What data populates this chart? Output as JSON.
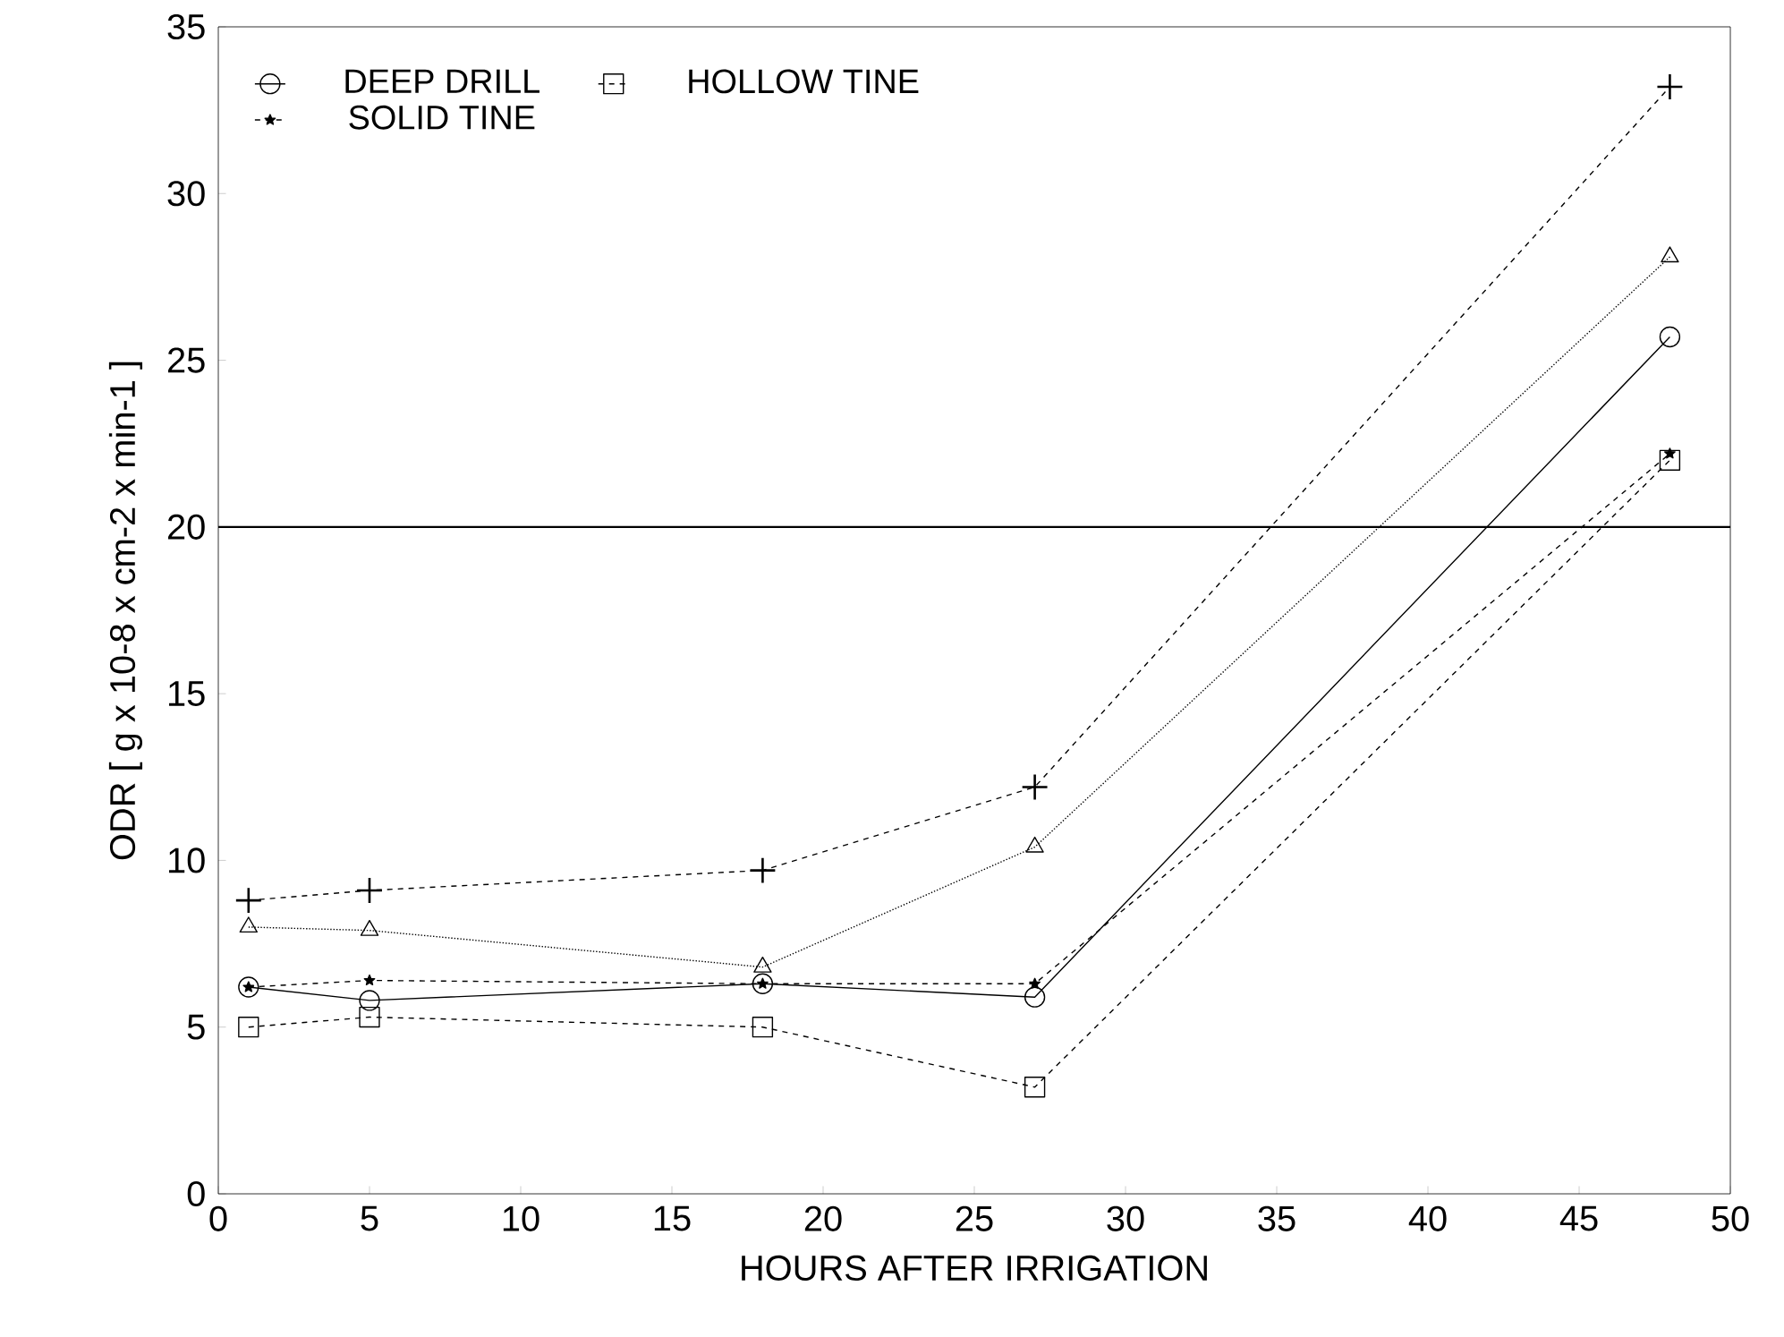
{
  "chart_data": {
    "type": "line",
    "xlabel": "HOURS AFTER IRRIGATION",
    "ylabel": "ODR [ g x 10-8 x cm-2 x min-1 ]",
    "xlim": [
      0,
      50
    ],
    "ylim": [
      0,
      35
    ],
    "xticks": [
      0,
      5,
      10,
      15,
      20,
      25,
      30,
      35,
      40,
      45,
      50
    ],
    "yticks": [
      0,
      5,
      10,
      15,
      20,
      25,
      30,
      35
    ],
    "x": [
      1,
      5,
      18,
      27,
      48
    ],
    "legend": "top left",
    "grid": false,
    "ref_lines": [
      {
        "axis": "y",
        "value": 20,
        "color": "#000000",
        "line_style": "solid"
      }
    ],
    "series": [
      {
        "name": "DEEP DRILL",
        "color": "#000000",
        "marker": "circle",
        "line_style": "solid",
        "values": [
          6.2,
          5.8,
          6.3,
          5.9,
          25.7
        ]
      },
      {
        "color": "#000000",
        "marker": "triangle",
        "line_style": "dotted",
        "values": [
          8.0,
          7.9,
          6.8,
          10.4,
          28.1
        ]
      },
      {
        "name": "HOLLOW TINE",
        "color": "#000000",
        "marker": "square",
        "line_style": "dashed",
        "values": [
          5.0,
          5.3,
          5.0,
          3.2,
          22.0
        ]
      },
      {
        "name": "SOLID TINE",
        "color": "#000000",
        "marker": "star",
        "line_style": "dashed",
        "values": [
          6.2,
          6.4,
          6.3,
          6.3,
          22.2
        ]
      },
      {
        "color": "#000000",
        "marker": "cross",
        "line_style": "dashed",
        "values": [
          8.8,
          9.1,
          9.7,
          12.2,
          33.2
        ]
      }
    ]
  }
}
